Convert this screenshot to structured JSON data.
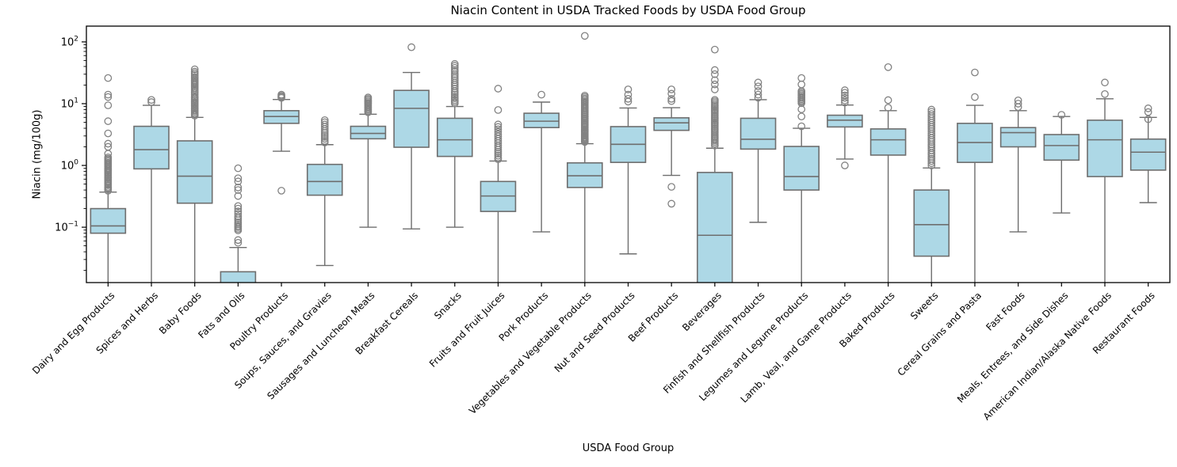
{
  "figure": {
    "title": "Niacin Content in USDA Tracked Foods by USDA Food Group",
    "xlabel": "USDA Food Group",
    "ylabel": "Niacin (mg/100g)"
  },
  "chart_data": {
    "type": "boxplot",
    "title": "Niacin Content in USDA Tracked Foods by USDA Food Group",
    "xlabel": "USDA Food Group",
    "ylabel": "Niacin (mg/100g)",
    "y_scale": "log",
    "ylim": [
      0.0127,
      180
    ],
    "y_major_tick_exponents": [
      -1,
      0,
      1,
      2
    ],
    "grid": false,
    "legend": "none",
    "units": "mg/100g",
    "note": "values of 0.001 mean the whisker/box extends below the visible axis minimum (clipped at axis)",
    "colors": {
      "box_fill": "#ADD8E6",
      "box_edge": "#6E6E6E",
      "whisker": "#6E6E6E",
      "flier_edge": "#828282",
      "spine": "#000000",
      "text": "#000000"
    },
    "groups": [
      {
        "label": "Dairy and Egg Products",
        "whislo": 0.001,
        "q1": 0.08,
        "med": 0.105,
        "q3": 0.2,
        "whishi": 0.37,
        "fliers": [
          26,
          14,
          12.8,
          9.4,
          5.2,
          3.3,
          2.25,
          2.0,
          1.55,
          1.35,
          1.28,
          1.22,
          1.16,
          1.1,
          1.05,
          1.0,
          0.95,
          0.9,
          0.86,
          0.82,
          0.78,
          0.74,
          0.7,
          0.66,
          0.63,
          0.6,
          0.57,
          0.54,
          0.51,
          0.48,
          0.45,
          0.43,
          0.41,
          0.39
        ]
      },
      {
        "label": "Spices and Herbs",
        "whislo": 0.001,
        "q1": 0.88,
        "med": 1.8,
        "q3": 4.3,
        "whishi": 9.4,
        "fliers": [
          11.5,
          10.6
        ]
      },
      {
        "label": "Baby Foods",
        "whislo": 0.001,
        "q1": 0.245,
        "med": 0.67,
        "q3": 2.5,
        "whishi": 6.0,
        "fliers": [
          36,
          33,
          31,
          29,
          27,
          25.5,
          24,
          23,
          22,
          21,
          20,
          19,
          18,
          17,
          16,
          15,
          14,
          13,
          12.4,
          11.8,
          11.2,
          10.6,
          10.1,
          9.6,
          9.1,
          8.6,
          8.2,
          7.8,
          7.4,
          7.0,
          6.7,
          6.4
        ]
      },
      {
        "label": "Fats and Oils",
        "whislo": 0.001,
        "q1": 0.001,
        "med": 0.01,
        "q3": 0.019,
        "whishi": 0.047,
        "fliers": [
          0.9,
          0.62,
          0.55,
          0.44,
          0.4,
          0.32,
          0.22,
          0.2,
          0.18,
          0.165,
          0.15,
          0.14,
          0.13,
          0.12,
          0.112,
          0.105,
          0.1,
          0.094,
          0.089,
          0.062,
          0.056
        ]
      },
      {
        "label": "Poultry Products",
        "whislo": 1.7,
        "q1": 4.8,
        "med": 6.2,
        "q3": 7.7,
        "whishi": 11.7,
        "fliers": [
          14,
          13.4,
          12.9,
          12.4,
          0.39
        ]
      },
      {
        "label": "Soups, Sauces, and Gravies",
        "whislo": 0.024,
        "q1": 0.33,
        "med": 0.55,
        "q3": 1.04,
        "whishi": 2.17,
        "fliers": [
          5.4,
          5.0,
          4.6,
          4.25,
          3.9,
          3.6,
          3.35,
          3.1,
          2.9,
          2.7,
          2.5,
          2.35
        ]
      },
      {
        "label": "Sausages and Luncheon Meats",
        "whislo": 0.1,
        "q1": 2.7,
        "med": 3.3,
        "q3": 4.3,
        "whishi": 6.75,
        "fliers": [
          12.6,
          12.0,
          11.4,
          10.8,
          10.3,
          9.8,
          9.3,
          8.8,
          8.4,
          8.0,
          7.6,
          7.25
        ]
      },
      {
        "label": "Breakfast Cereals",
        "whislo": 0.094,
        "q1": 1.97,
        "med": 8.4,
        "q3": 16.4,
        "whishi": 32,
        "fliers": [
          82
        ]
      },
      {
        "label": "Snacks",
        "whislo": 0.1,
        "q1": 1.4,
        "med": 2.6,
        "q3": 5.8,
        "whishi": 9.0,
        "fliers": [
          44,
          41,
          38,
          35,
          33,
          30,
          28,
          26,
          24,
          22,
          20.5,
          19,
          17.5,
          16,
          15,
          14,
          13,
          12.2,
          11.4,
          10.7,
          10.1
        ]
      },
      {
        "label": "Fruits and Fruit Juices",
        "whislo": 0.001,
        "q1": 0.18,
        "med": 0.32,
        "q3": 0.55,
        "whishi": 1.18,
        "fliers": [
          17.5,
          7.9,
          4.6,
          4.2,
          3.85,
          3.5,
          3.2,
          2.95,
          2.7,
          2.5,
          2.3,
          2.1,
          1.95,
          1.8,
          1.67,
          1.55,
          1.44,
          1.34,
          1.26
        ]
      },
      {
        "label": "Pork Products",
        "whislo": 0.084,
        "q1": 4.1,
        "med": 5.2,
        "q3": 7.0,
        "whishi": 10.6,
        "fliers": [
          14
        ]
      },
      {
        "label": "Vegetables and Vegetable Products",
        "whislo": 0.001,
        "q1": 0.44,
        "med": 0.68,
        "q3": 1.1,
        "whishi": 2.25,
        "fliers": [
          125,
          13.5,
          12.8,
          12.1,
          11.5,
          10.9,
          10.4,
          9.9,
          9.4,
          8.9,
          8.5,
          8.1,
          7.7,
          7.3,
          7.0,
          6.7,
          6.4,
          6.1,
          5.8,
          5.55,
          5.3,
          5.05,
          4.8,
          4.6,
          4.4,
          4.2,
          4.0,
          3.8,
          3.65,
          3.5,
          3.35,
          3.2,
          3.05,
          2.9,
          2.8,
          2.7,
          2.6,
          2.5,
          2.4
        ]
      },
      {
        "label": "Nut and Seed Products",
        "whislo": 0.037,
        "q1": 1.12,
        "med": 2.2,
        "q3": 4.25,
        "whishi": 8.5,
        "fliers": [
          17,
          14,
          12,
          10.8
        ]
      },
      {
        "label": "Beef Products",
        "whislo": 0.69,
        "q1": 3.7,
        "med": 4.9,
        "q3": 5.9,
        "whishi": 8.6,
        "fliers": [
          17,
          14.5,
          12,
          11,
          0.45,
          0.24
        ]
      },
      {
        "label": "Beverages",
        "whislo": 0.001,
        "q1": 0.001,
        "med": 0.074,
        "q3": 0.77,
        "whishi": 1.9,
        "fliers": [
          75,
          35,
          30,
          24,
          20.5,
          17,
          11.5,
          10.9,
          10.3,
          9.7,
          9.2,
          8.7,
          8.2,
          7.8,
          7.4,
          7.0,
          6.6,
          6.25,
          5.9,
          5.6,
          5.3,
          5.0,
          4.75,
          4.5,
          4.25,
          4.0,
          3.8,
          3.6,
          3.4,
          3.2,
          3.0,
          2.85,
          2.7,
          2.55,
          2.4,
          2.25,
          2.1
        ]
      },
      {
        "label": "Finfish and Shellfish Products",
        "whislo": 0.12,
        "q1": 1.84,
        "med": 2.65,
        "q3": 5.8,
        "whishi": 11.6,
        "fliers": [
          22,
          19,
          16,
          14,
          12.5
        ]
      },
      {
        "label": "Legumes and Legume Products",
        "whislo": 0.001,
        "q1": 0.4,
        "med": 0.66,
        "q3": 2.03,
        "whishi": 4.0,
        "fliers": [
          26,
          20.5,
          16,
          15.2,
          14.4,
          13.7,
          13.0,
          12.4,
          11.8,
          11.2,
          10.7,
          10.2,
          8.1,
          6.2,
          4.3
        ]
      },
      {
        "label": "Lamb, Veal, and Game Products",
        "whislo": 1.27,
        "q1": 4.2,
        "med": 5.4,
        "q3": 6.5,
        "whishi": 9.5,
        "fliers": [
          16.5,
          15,
          13.6,
          12.4,
          11.3,
          10.4,
          1.0
        ]
      },
      {
        "label": "Baked Products",
        "whislo": 0.001,
        "q1": 1.47,
        "med": 2.6,
        "q3": 3.9,
        "whishi": 7.7,
        "fliers": [
          39,
          11.4,
          8.6
        ]
      },
      {
        "label": "Sweets",
        "whislo": 0.001,
        "q1": 0.034,
        "med": 0.11,
        "q3": 0.4,
        "whishi": 0.91,
        "fliers": [
          8.0,
          7.4,
          6.8,
          6.3,
          5.8,
          5.35,
          4.95,
          4.55,
          4.2,
          3.9,
          3.6,
          3.3,
          3.05,
          2.8,
          2.6,
          2.4,
          2.2,
          2.05,
          1.9,
          1.75,
          1.6,
          1.5,
          1.38,
          1.28,
          1.18,
          1.09,
          1.0
        ]
      },
      {
        "label": "Cereal Grains and Pasta",
        "whislo": 0.001,
        "q1": 1.12,
        "med": 2.35,
        "q3": 4.8,
        "whishi": 9.4,
        "fliers": [
          32,
          12.8
        ]
      },
      {
        "label": "Fast Foods",
        "whislo": 0.084,
        "q1": 2.0,
        "med": 3.4,
        "q3": 4.1,
        "whishi": 7.7,
        "fliers": [
          11.3,
          10.0,
          8.8
        ]
      },
      {
        "label": "Meals, Entrees, and Side Dishes",
        "whislo": 0.17,
        "q1": 1.22,
        "med": 2.1,
        "q3": 3.16,
        "whishi": 6.2,
        "fliers": [
          6.6
        ]
      },
      {
        "label": "American Indian/Alaska Native Foods",
        "whislo": 0.001,
        "q1": 0.66,
        "med": 2.6,
        "q3": 5.4,
        "whishi": 12,
        "fliers": [
          22,
          14.3
        ]
      },
      {
        "label": "Restaurant Foods",
        "whislo": 0.25,
        "q1": 0.84,
        "med": 1.64,
        "q3": 2.67,
        "whishi": 6.0,
        "fliers": [
          8.4,
          7.3,
          5.6
        ]
      }
    ]
  }
}
